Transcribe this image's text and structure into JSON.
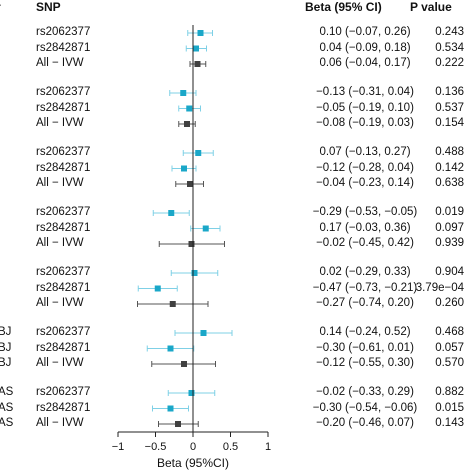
{
  "header": {
    "left": "r",
    "snp": "SNP",
    "beta": "Beta (95% CI)",
    "pvalue": "P value"
  },
  "chart_data": {
    "type": "forest",
    "xlabel": "Beta (95%CI)",
    "xlim": [
      -1,
      1
    ],
    "xticks": [
      "-1",
      "-0.5",
      "0",
      "0.5",
      "1"
    ],
    "tick_values": [
      -1,
      -0.5,
      0,
      0.5,
      1
    ],
    "colors": {
      "snp": "#1aa7c8",
      "ivw": "#404040",
      "ci_line_snp": "#7fd0e6",
      "ci_line_ivw": "#555555"
    },
    "groups": [
      {
        "label": "",
        "rows": [
          {
            "snp": "rs2062377",
            "beta": 0.1,
            "lo": -0.07,
            "hi": 0.26,
            "ci": "0.10 (−0.07, 0.26)",
            "p": "0.243",
            "kind": "snp"
          },
          {
            "snp": "rs2842871",
            "beta": 0.04,
            "lo": -0.09,
            "hi": 0.18,
            "ci": "0.04 (−0.09, 0.18)",
            "p": "0.534",
            "kind": "snp"
          },
          {
            "snp": "All − IVW",
            "beta": 0.06,
            "lo": -0.04,
            "hi": 0.17,
            "ci": "0.06 (−0.04, 0.17)",
            "p": "0.222",
            "kind": "ivw"
          }
        ]
      },
      {
        "label": "",
        "rows": [
          {
            "snp": "rs2062377",
            "beta": -0.13,
            "lo": -0.31,
            "hi": 0.04,
            "ci": "−0.13 (−0.31, 0.04)",
            "p": "0.136",
            "kind": "snp"
          },
          {
            "snp": "rs2842871",
            "beta": -0.05,
            "lo": -0.19,
            "hi": 0.1,
            "ci": "−0.05 (−0.19, 0.10)",
            "p": "0.537",
            "kind": "snp"
          },
          {
            "snp": "All − IVW",
            "beta": -0.08,
            "lo": -0.19,
            "hi": 0.03,
            "ci": "−0.08 (−0.19, 0.03)",
            "p": "0.154",
            "kind": "ivw"
          }
        ]
      },
      {
        "label": "",
        "rows": [
          {
            "snp": "rs2062377",
            "beta": 0.07,
            "lo": -0.13,
            "hi": 0.27,
            "ci": "0.07 (−0.13, 0.27)",
            "p": "0.488",
            "kind": "snp"
          },
          {
            "snp": "rs2842871",
            "beta": -0.12,
            "lo": -0.28,
            "hi": 0.04,
            "ci": "−0.12 (−0.28, 0.04)",
            "p": "0.142",
            "kind": "snp"
          },
          {
            "snp": "All − IVW",
            "beta": -0.04,
            "lo": -0.23,
            "hi": 0.14,
            "ci": "−0.04 (−0.23, 0.14)",
            "p": "0.638",
            "kind": "ivw"
          }
        ]
      },
      {
        "label": "",
        "rows": [
          {
            "snp": "rs2062377",
            "beta": -0.29,
            "lo": -0.53,
            "hi": -0.05,
            "ci": "−0.29 (−0.53, −0.05)",
            "p": "0.019",
            "kind": "snp"
          },
          {
            "snp": "rs2842871",
            "beta": 0.17,
            "lo": -0.03,
            "hi": 0.36,
            "ci": "0.17 (−0.03, 0.36)",
            "p": "0.097",
            "kind": "snp"
          },
          {
            "snp": "All − IVW",
            "beta": -0.02,
            "lo": -0.45,
            "hi": 0.42,
            "ci": "−0.02 (−0.45, 0.42)",
            "p": "0.939",
            "kind": "ivw"
          }
        ]
      },
      {
        "label": "",
        "rows": [
          {
            "snp": "rs2062377",
            "beta": 0.02,
            "lo": -0.29,
            "hi": 0.33,
            "ci": "0.02 (−0.29, 0.33)",
            "p": "0.904",
            "kind": "snp"
          },
          {
            "snp": "rs2842871",
            "beta": -0.47,
            "lo": -0.73,
            "hi": -0.21,
            "ci": "−0.47 (−0.73, −0.21)",
            "p": "3.79e−04",
            "kind": "snp"
          },
          {
            "snp": "All − IVW",
            "beta": -0.27,
            "lo": -0.74,
            "hi": 0.2,
            "ci": "−0.27 (−0.74, 0.20)",
            "p": "0.260",
            "kind": "ivw"
          }
        ]
      },
      {
        "label": "BJ",
        "rows": [
          {
            "snp": "rs2062377",
            "beta": 0.14,
            "lo": -0.24,
            "hi": 0.52,
            "ci": "0.14 (−0.24, 0.52)",
            "p": "0.468",
            "kind": "snp"
          },
          {
            "snp": "rs2842871",
            "beta": -0.3,
            "lo": -0.61,
            "hi": 0.01,
            "ci": "−0.30 (−0.61, 0.01)",
            "p": "0.057",
            "kind": "snp"
          },
          {
            "snp": "All − IVW",
            "beta": -0.12,
            "lo": -0.55,
            "hi": 0.3,
            "ci": "−0.12 (−0.55, 0.30)",
            "p": "0.570",
            "kind": "ivw"
          }
        ]
      },
      {
        "label": "AS",
        "rows": [
          {
            "snp": "rs2062377",
            "beta": -0.02,
            "lo": -0.33,
            "hi": 0.29,
            "ci": "−0.02 (−0.33, 0.29)",
            "p": "0.882",
            "kind": "snp"
          },
          {
            "snp": "rs2842871",
            "beta": -0.3,
            "lo": -0.54,
            "hi": -0.06,
            "ci": "−0.30 (−0.54, −0.06)",
            "p": "0.015",
            "kind": "snp"
          },
          {
            "snp": "All − IVW",
            "beta": -0.2,
            "lo": -0.46,
            "hi": 0.07,
            "ci": "−0.20 (−0.46, 0.07)",
            "p": "0.143",
            "kind": "ivw"
          }
        ]
      }
    ]
  }
}
